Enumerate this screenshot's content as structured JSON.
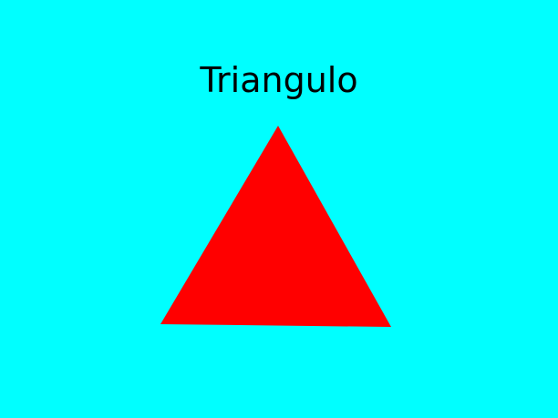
{
  "title": "Triangulo",
  "colors": {
    "background": "#00ffff",
    "shape_fill": "#ff0000",
    "title_text": "#000000"
  },
  "shape": {
    "type": "triangle-icon"
  }
}
